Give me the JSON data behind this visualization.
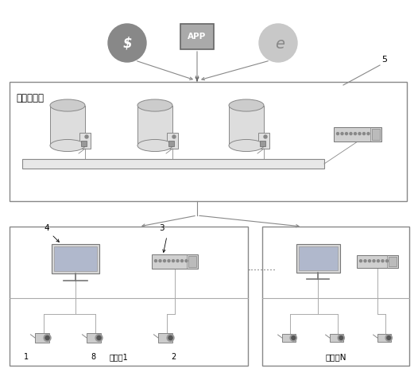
{
  "bg_color": "#ffffff",
  "text_color": "#000000",
  "gray_med": "#999999",
  "gray_light": "#cccccc",
  "gray_dark": "#666666",
  "server_label": "中心服务器",
  "station1_label": "加油站1",
  "stationN_label": "加油站N",
  "label_5": "5",
  "label_4": "4",
  "label_3": "3",
  "label_1": "1",
  "label_2": "2",
  "label_8": "8",
  "dots": ".........",
  "app_label": "APP",
  "figw": 5.26,
  "figh": 4.78,
  "dpi": 100
}
